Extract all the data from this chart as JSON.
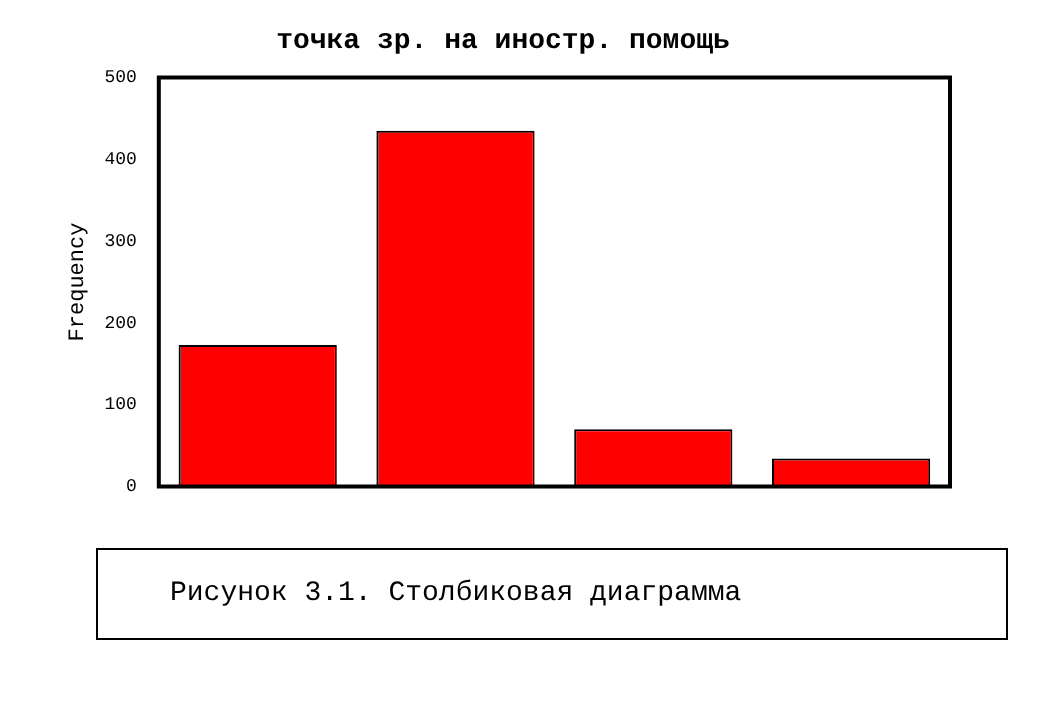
{
  "chart_data": {
    "type": "bar",
    "title": "точка зр. на иностр. помощь",
    "ylabel": "Frequency",
    "categories": [
      null,
      null,
      null,
      null
    ],
    "values": [
      173,
      435,
      70,
      34
    ],
    "color": "#ff0000",
    "ylim": [
      0,
      500
    ],
    "yticks": [
      0,
      100,
      200,
      300,
      400,
      500
    ],
    "grid": false,
    "legend": false,
    "annotations": [
      "Рисунок 3.1. Столбиковая диаграмма"
    ]
  }
}
